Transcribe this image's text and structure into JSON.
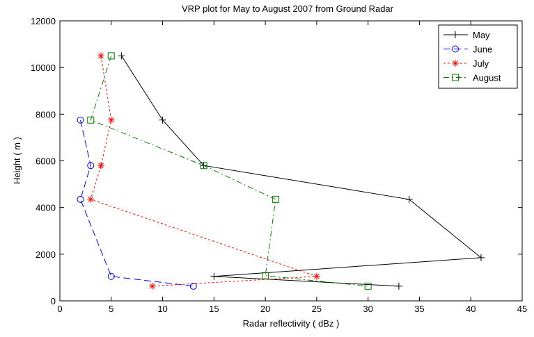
{
  "chart_data": {
    "type": "line",
    "title": "VRP plot for May to August 2007 from Ground Radar",
    "xlabel": "Radar reflectivity ( dBz )",
    "ylabel": "Height ( m )",
    "xlim": [
      0,
      45
    ],
    "ylim": [
      0,
      12000
    ],
    "xticks": [
      0,
      5,
      10,
      15,
      20,
      25,
      30,
      35,
      40,
      45
    ],
    "yticks": [
      0,
      2000,
      4000,
      6000,
      8000,
      10000,
      12000
    ],
    "grid": false,
    "legend_position": "top-right",
    "series": [
      {
        "name": "May",
        "color": "#000000",
        "line_style": "solid",
        "marker": "plus",
        "points": [
          [
            6,
            10500
          ],
          [
            10,
            7750
          ],
          [
            14,
            5800
          ],
          [
            34,
            4350
          ],
          [
            41,
            1850
          ],
          [
            15,
            1050
          ],
          [
            33,
            630
          ]
        ]
      },
      {
        "name": "June",
        "color": "#0000ff",
        "line_style": "dashed",
        "marker": "circle",
        "points": [
          [
            2,
            7750
          ],
          [
            3,
            5800
          ],
          [
            2,
            4350
          ],
          [
            5,
            1050
          ],
          [
            13,
            630
          ]
        ]
      },
      {
        "name": "July",
        "color": "#ff0000",
        "line_style": "dotted",
        "marker": "asterisk",
        "points": [
          [
            4,
            10500
          ],
          [
            5,
            7750
          ],
          [
            4,
            5800
          ],
          [
            3,
            4350
          ],
          [
            25,
            1050
          ],
          [
            9,
            630
          ]
        ]
      },
      {
        "name": "August",
        "color": "#008000",
        "line_style": "dash-dot",
        "marker": "square",
        "points": [
          [
            5,
            10500
          ],
          [
            3,
            7750
          ],
          [
            14,
            5800
          ],
          [
            21,
            4350
          ],
          [
            20,
            1080
          ],
          [
            30,
            630
          ]
        ]
      }
    ]
  }
}
